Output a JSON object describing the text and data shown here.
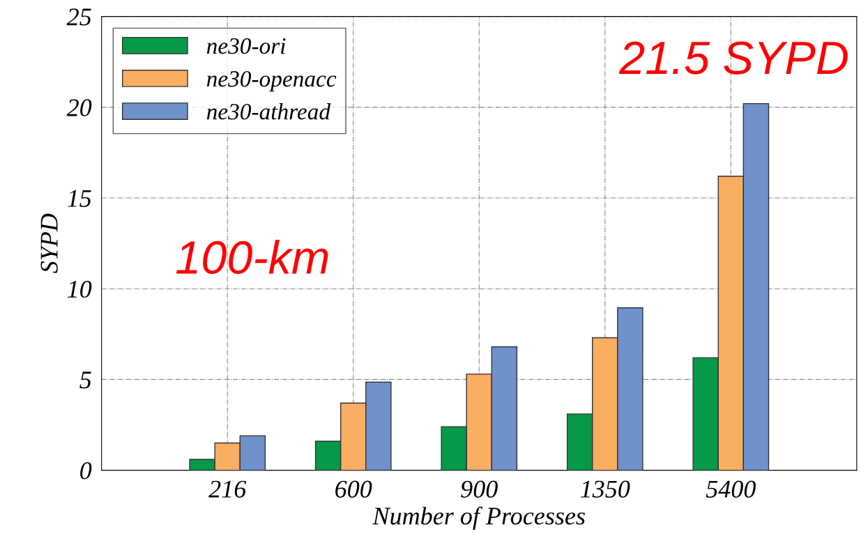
{
  "chart_data": {
    "type": "bar",
    "categories": [
      "216",
      "600",
      "900",
      "1350",
      "5400"
    ],
    "xlabel": "Number of Processes",
    "ylabel": "SYPD",
    "series": [
      {
        "name": "ne30-ori",
        "color": "#07994a",
        "values": [
          0.6,
          1.6,
          2.4,
          3.1,
          6.2
        ]
      },
      {
        "name": "ne30-openacc",
        "color": "#f9ae62",
        "values": [
          1.5,
          3.7,
          5.3,
          7.3,
          16.2
        ]
      },
      {
        "name": "ne30-athread",
        "color": "#7092cc",
        "values": [
          1.9,
          4.85,
          6.8,
          8.95,
          20.2
        ]
      }
    ],
    "ylim": [
      0,
      25
    ],
    "yticks": [
      0,
      5,
      10,
      15,
      20,
      25
    ],
    "grid": true,
    "legend": "top left",
    "annotations": [
      "100-km",
      "21.5 SYPD"
    ]
  }
}
